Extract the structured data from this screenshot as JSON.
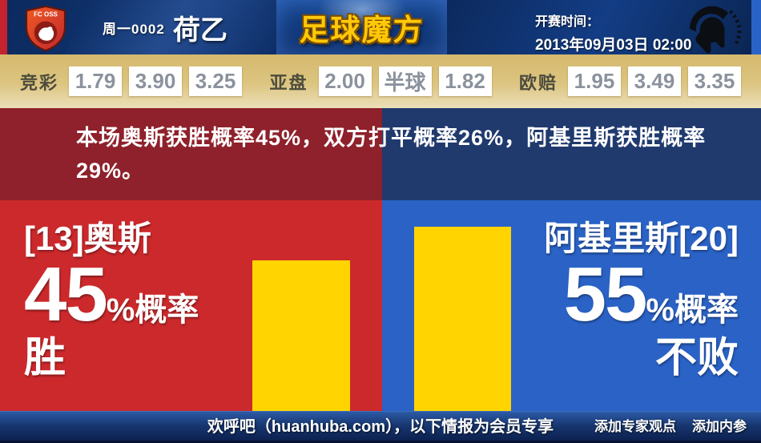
{
  "header": {
    "match_no": "周一0002",
    "league": "荷乙",
    "site_logo": "足球魔方",
    "kickoff_label": "开赛时间：",
    "kickoff_time": "2013年09月03日 02:00",
    "home_badge_label": "FC OSS"
  },
  "odds": {
    "jingcai": {
      "label": "竞彩",
      "values": [
        "1.79",
        "3.90",
        "3.25"
      ]
    },
    "yapan": {
      "label": "亚盘",
      "values": [
        "2.00",
        "半球",
        "1.82"
      ]
    },
    "oupei": {
      "label": "欧赔",
      "values": [
        "1.95",
        "3.49",
        "3.35"
      ]
    }
  },
  "summary": {
    "text": "本场奥斯获胜概率45%，双方打平概率26%，阿基里斯获胜概率29%。"
  },
  "prediction": {
    "home": {
      "team": "[13]奥斯",
      "percent": "45",
      "percent_suffix": "%概率",
      "outcome": "胜"
    },
    "away": {
      "team": "阿基里斯[20]",
      "percent": "55",
      "percent_suffix": "%概率",
      "outcome": "不败"
    }
  },
  "chart_data": {
    "type": "bar",
    "categories": [
      "奥斯 胜概率",
      "阿基里斯 不败概率"
    ],
    "values": [
      45,
      55
    ],
    "unit": "%",
    "ylim": [
      0,
      55
    ],
    "bar_color": "#ffd400"
  },
  "footer": {
    "notice": "欢呼吧（huanhuba.com），以下情报为会员专享",
    "links": [
      "添加专家观点",
      "添加内参"
    ]
  },
  "colors": {
    "home_red": "#cc292c",
    "home_dark_red": "#8e212b",
    "away_blue": "#2a62c6",
    "away_dark_blue": "#203a6e",
    "bar_yellow": "#ffd400",
    "odds_band_tan": "#dcc581",
    "header_navy": "#0d2c63",
    "logo_gold": "#ffc908"
  }
}
